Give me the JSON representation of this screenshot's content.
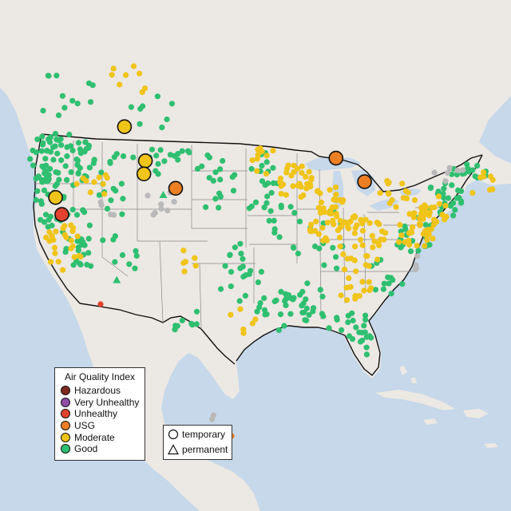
{
  "map": {
    "colors": {
      "ocean": "#c6d8ea",
      "land": "#ece8e3",
      "land_alt": "#e6e1da",
      "state_line": "#8a8a8a",
      "country_line": "#111111"
    }
  },
  "legend_aqi": {
    "title": "Air Quality Index",
    "items": [
      {
        "label": "Hazardous",
        "color": "#7e2a1e"
      },
      {
        "label": "Very Unhealthy",
        "color": "#8f4fa6"
      },
      {
        "label": "Unhealthy",
        "color": "#e2422e"
      },
      {
        "label": "USG",
        "color": "#ec7e23"
      },
      {
        "label": "Moderate",
        "color": "#f0c419"
      },
      {
        "label": "Good",
        "color": "#2fbf71"
      }
    ]
  },
  "legend_shape": {
    "items": [
      {
        "label": "temporary",
        "shape": "circle"
      },
      {
        "label": "permanent",
        "shape": "triangle"
      }
    ]
  },
  "monitors": {
    "large": [
      {
        "lon": -111.5,
        "lat": 45.2,
        "aqi": "Moderate"
      },
      {
        "lon": -108.8,
        "lat": 42.6,
        "aqi": "Moderate"
      },
      {
        "lon": -109.0,
        "lat": 41.6,
        "aqi": "Moderate"
      },
      {
        "lon": -120.4,
        "lat": 39.8,
        "aqi": "Moderate"
      },
      {
        "lon": -119.6,
        "lat": 38.5,
        "aqi": "Unhealthy"
      },
      {
        "lon": -104.9,
        "lat": 40.5,
        "aqi": "USG"
      },
      {
        "lon": -84.2,
        "lat": 42.8,
        "aqi": "USG"
      },
      {
        "lon": -80.5,
        "lat": 41.0,
        "aqi": "USG"
      }
    ],
    "triangles": [
      {
        "lon": -112.5,
        "lat": 33.5,
        "aqi": "Good"
      },
      {
        "lon": -106.5,
        "lat": 40.0,
        "aqi": "Good"
      }
    ]
  }
}
